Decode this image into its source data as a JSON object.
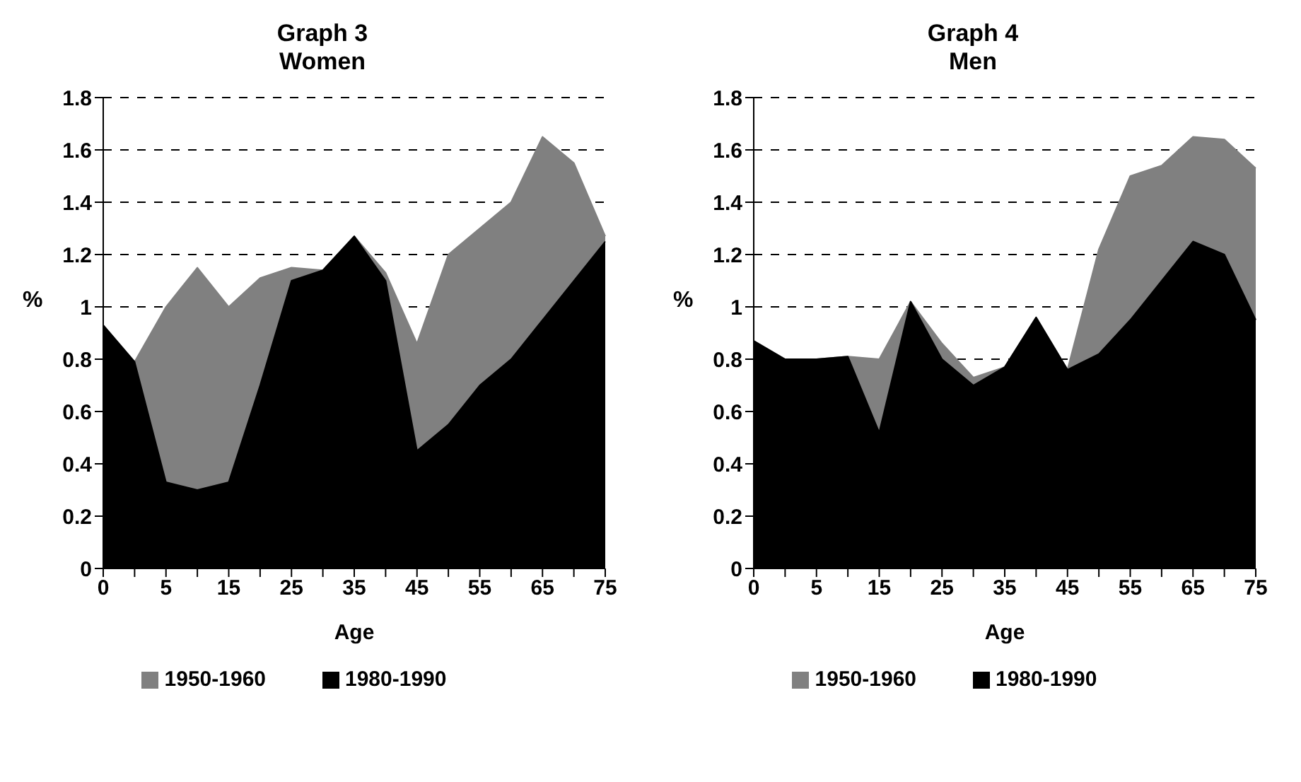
{
  "chart_data": [
    {
      "type": "area",
      "title": "Graph 3",
      "subtitle": "Women",
      "xlabel": "Age",
      "ylabel": "%",
      "categories": [
        "0",
        null,
        "5",
        null,
        "15",
        null,
        "25",
        null,
        "35",
        null,
        "45",
        null,
        "55",
        null,
        "65",
        null,
        "75"
      ],
      "series": [
        {
          "name": "1950-1960",
          "color": "#808080",
          "values": [
            0.93,
            0.79,
            1.0,
            1.15,
            1.0,
            1.11,
            1.15,
            1.14,
            1.27,
            1.13,
            0.86,
            1.2,
            1.3,
            1.4,
            1.65,
            1.55,
            1.27
          ]
        },
        {
          "name": "1980-1990",
          "color": "#000000",
          "values": [
            0.93,
            0.79,
            0.33,
            0.3,
            0.33,
            0.7,
            1.1,
            1.14,
            1.27,
            1.1,
            0.45,
            0.55,
            0.7,
            0.8,
            0.95,
            1.1,
            1.25
          ]
        }
      ],
      "ylim": [
        0,
        1.8
      ],
      "yticks": [
        0,
        0.2,
        0.4,
        0.6,
        0.8,
        1,
        1.2,
        1.4,
        1.6,
        1.8
      ],
      "grid": "y",
      "legend": "bottom"
    },
    {
      "type": "area",
      "title": "Graph 4",
      "subtitle": "Men",
      "xlabel": "Age",
      "ylabel": "%",
      "categories": [
        "0",
        null,
        "5",
        null,
        "15",
        null,
        "25",
        null,
        "35",
        null,
        "45",
        null,
        "55",
        null,
        "65",
        null,
        "75"
      ],
      "series": [
        {
          "name": "1950-1960",
          "color": "#808080",
          "values": [
            0.87,
            0.8,
            0.8,
            0.81,
            0.8,
            1.02,
            0.86,
            0.73,
            0.77,
            0.96,
            0.76,
            1.22,
            1.5,
            1.54,
            1.65,
            1.64,
            1.53
          ]
        },
        {
          "name": "1980-1990",
          "color": "#000000",
          "values": [
            0.87,
            0.8,
            0.8,
            0.81,
            0.52,
            1.02,
            0.8,
            0.7,
            0.77,
            0.96,
            0.76,
            0.82,
            0.95,
            1.1,
            1.25,
            1.2,
            0.95
          ]
        }
      ],
      "ylim": [
        0,
        1.8
      ],
      "yticks": [
        0,
        0.2,
        0.4,
        0.6,
        0.8,
        1,
        1.2,
        1.4,
        1.6,
        1.8
      ],
      "grid": "y",
      "legend": "bottom"
    }
  ]
}
